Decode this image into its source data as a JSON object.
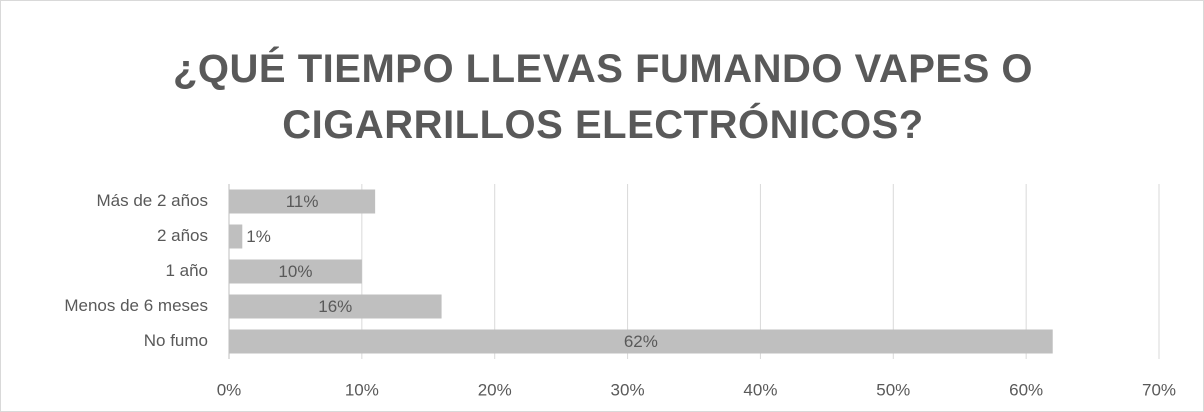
{
  "chart_data": {
    "type": "bar",
    "orientation": "horizontal",
    "title": "¿QUÉ TIEMPO LLEVAS FUMANDO VAPES O CIGARRILLOS ELECTRÓNICOS?",
    "categories": [
      "Más de 2 años",
      "2 años",
      "1 año",
      "Menos de 6 meses",
      "No fumo"
    ],
    "values": [
      11,
      1,
      10,
      16,
      62
    ],
    "value_labels": [
      "11%",
      "1%",
      "10%",
      "16%",
      "62%"
    ],
    "color": "#bfbfbf",
    "xlim": [
      0,
      70
    ],
    "xticks": [
      {
        "value": 0,
        "label": "0%"
      },
      {
        "value": 10,
        "label": "10%"
      },
      {
        "value": 20,
        "label": "20%"
      },
      {
        "value": 30,
        "label": "30%"
      },
      {
        "value": 40,
        "label": "40%"
      },
      {
        "value": 50,
        "label": "50%"
      },
      {
        "value": 60,
        "label": "60%"
      },
      {
        "value": 70,
        "label": "70%"
      }
    ],
    "grid": true
  }
}
